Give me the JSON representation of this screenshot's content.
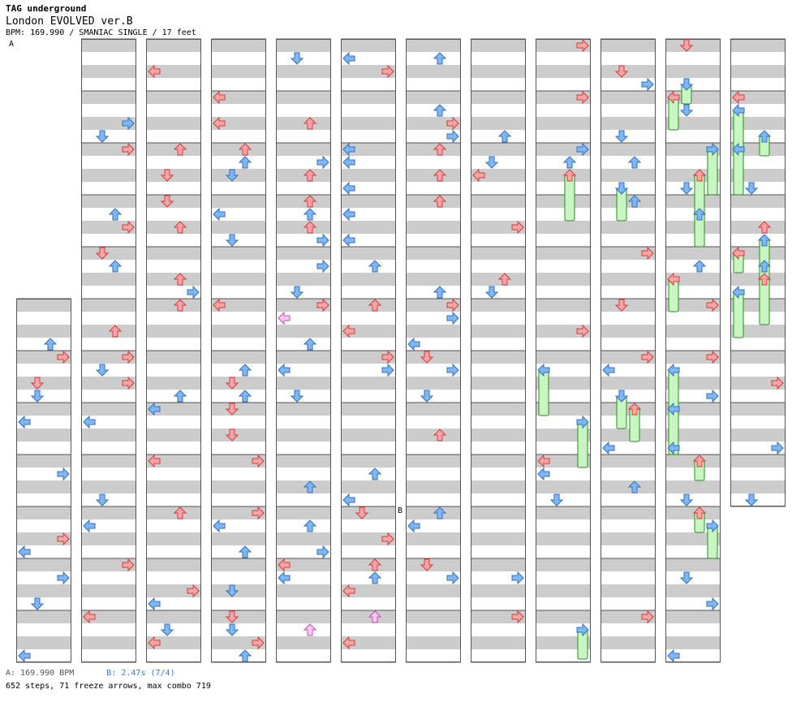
{
  "header": {
    "artist": "TAG underground",
    "title": "London EVOLVED ver.B",
    "info": "BPM: 169.990 / SMANIAC SINGLE / 17 feet"
  },
  "markers": {
    "a": "A",
    "b": "B"
  },
  "footer": {
    "bpm_a": "A: 169.990 BPM",
    "bpm_b": "B: 2.47s (7/4)",
    "stats": "652 steps, 71 freeze arrows, max combo 719"
  },
  "colors": {
    "stripe": "#cccccc",
    "border": "#555555",
    "arrow_red": "#f4a6a6",
    "arrow_red_stroke": "#d43a3a",
    "arrow_blue": "#7fb8f0",
    "arrow_blue_stroke": "#2f6fc0",
    "arrow_pink": "#f7c8f0",
    "arrow_pink_stroke": "#c050b0",
    "freeze_fill": "#c8f5c0",
    "freeze_stroke": "#2a8a2a"
  },
  "chart_data": {
    "type": "step-chart",
    "lanes": [
      "left",
      "down",
      "up",
      "right"
    ],
    "columns": 12,
    "measures_per_column": 12,
    "steps": 652,
    "freeze_arrows": 71,
    "max_combo": 719
  }
}
